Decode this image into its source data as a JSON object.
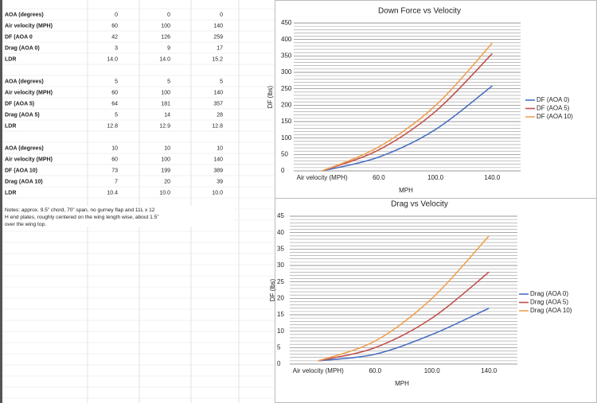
{
  "sheet": {
    "blocks": [
      {
        "rows": [
          {
            "label": "AOA (degrees)",
            "cells": [
              "0",
              "0",
              "0"
            ]
          },
          {
            "label": "Air velocity (MPH)",
            "cells": [
              "60",
              "100",
              "140"
            ]
          },
          {
            "label": "DF (AOA 0",
            "cells": [
              "42",
              "126",
              "259"
            ]
          },
          {
            "label": "Drag (AOA 0)",
            "cells": [
              "3",
              "9",
              "17"
            ]
          },
          {
            "label": "LDR",
            "cells": [
              "14.0",
              "14.0",
              "15.2"
            ]
          }
        ]
      },
      {
        "rows": [
          {
            "label": "AOA (degrees)",
            "cells": [
              "5",
              "5",
              "5"
            ]
          },
          {
            "label": "Air velocity (MPH)",
            "cells": [
              "60",
              "100",
              "140"
            ]
          },
          {
            "label": "DF (AOA 5)",
            "cells": [
              "64",
              "181",
              "357"
            ]
          },
          {
            "label": "Drag (AOA 5)",
            "cells": [
              "5",
              "14",
              "28"
            ]
          },
          {
            "label": "LDR",
            "cells": [
              "12.8",
              "12.9",
              "12.8"
            ]
          }
        ]
      },
      {
        "rows": [
          {
            "label": "AOA (degrees)",
            "cells": [
              "10",
              "10",
              "10"
            ]
          },
          {
            "label": "Air velocity (MPH)",
            "cells": [
              "60",
              "100",
              "140"
            ]
          },
          {
            "label": "DF (AOA 10)",
            "cells": [
              "73",
              "199",
              "389"
            ]
          },
          {
            "label": "Drag (AOA 10)",
            "cells": [
              "7",
              "20",
              "39"
            ]
          },
          {
            "label": "LDR",
            "cells": [
              "10.4",
              "10.0",
              "10.0"
            ]
          }
        ]
      }
    ],
    "notes": [
      "Notes: approx. 9.5” chord, 70” span, no gurney flap and 11L x 12",
      "H end plates, roughly centered on the wing length wise, about 1.5”",
      "over the wing top."
    ]
  },
  "chart_data": [
    {
      "type": "line",
      "title": "Down Force vs Velocity",
      "y_label": "DF (lbs)",
      "x_label": "MPH",
      "categories": [
        "Air velocity (MPH)",
        "60.0",
        "100.0",
        "140.0"
      ],
      "series": [
        {
          "name": "DF (AOA 0)",
          "color": "#4a6fc0",
          "values": [
            0,
            42,
            126,
            259
          ]
        },
        {
          "name": "DF (AOA 5)",
          "color": "#c0504d",
          "values": [
            0,
            64,
            181,
            357
          ]
        },
        {
          "name": "DF (AOA 10)",
          "color": "#f0a050",
          "values": [
            0,
            73,
            199,
            389
          ]
        }
      ],
      "ylim": [
        0,
        450
      ],
      "yticks": [
        0,
        50,
        100,
        150,
        200,
        250,
        300,
        350,
        400,
        450
      ],
      "grid": true,
      "minor_grid": true,
      "legend": "right",
      "smooth": true
    },
    {
      "type": "line",
      "title": "Drag vs Velocity",
      "y_label": "DF (lbs)",
      "x_label": "MPH",
      "categories": [
        "Air velocity (MPH)",
        "60.0",
        "100.0",
        "140.0"
      ],
      "series": [
        {
          "name": "Drag (AOA 0)",
          "color": "#4a6fc0",
          "values": [
            1,
            3,
            9,
            17
          ]
        },
        {
          "name": "Drag (AOA 5)",
          "color": "#c0504d",
          "values": [
            1,
            5,
            14,
            28
          ]
        },
        {
          "name": "Drag (AOA 10)",
          "color": "#f0a050",
          "values": [
            1,
            7,
            20,
            39
          ]
        }
      ],
      "ylim": [
        0,
        45
      ],
      "yticks": [
        0,
        5,
        10,
        15,
        20,
        25,
        30,
        35,
        40,
        45
      ],
      "grid": true,
      "minor_grid": true,
      "legend": "right",
      "smooth": true
    }
  ]
}
